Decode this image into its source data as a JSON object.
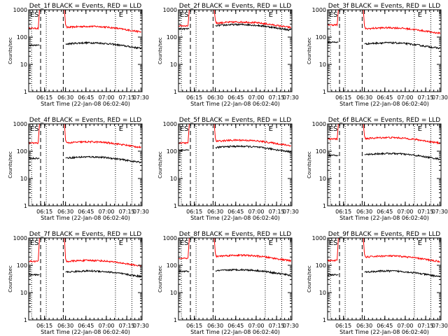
{
  "chart_data": [
    {
      "type": "line",
      "title": "Det_1f BLACK = Events, RED = LLD",
      "xlabel": "Start Time (22-Jan-08 06:02:40)",
      "ylabel": "Counts/sec",
      "x_ticks": [
        "06:15",
        "06:30",
        "06:45",
        "07:00",
        "07:15",
        "07:30"
      ],
      "y_ticks": [
        "1",
        "10",
        "100",
        "1000"
      ],
      "ylim": [
        1,
        1000
      ],
      "y_scale": "log",
      "markers": {
        "E1": "E",
        "S": "S",
        "E2": "E"
      },
      "series": [
        {
          "color": "#ff0000",
          "start_level": 210,
          "peak": 1000,
          "end_level": 180
        },
        {
          "color": "#000000",
          "start_level": 50,
          "end_level": 45
        }
      ]
    },
    {
      "type": "line",
      "title": "Det_2f BLACK = Events, RED = LLD",
      "xlabel": "Start Time (22-Jan-08 06:02:40)",
      "ylabel": "Counts/sec",
      "x_ticks": [
        "06:15",
        "06:30",
        "06:45",
        "07:00",
        "07:15",
        "07:30"
      ],
      "y_ticks": [
        "1",
        "10",
        "100",
        "1000"
      ],
      "ylim": [
        1,
        1000
      ],
      "y_scale": "log",
      "markers": {
        "E1": "E",
        "S": "S",
        "E2": "E"
      },
      "series": [
        {
          "color": "#ff0000",
          "start_level": 260,
          "peak": 1000,
          "end_level": 260
        },
        {
          "color": "#000000",
          "start_level": 200,
          "end_level": 210
        }
      ]
    },
    {
      "type": "line",
      "title": "Det_3f BLACK = Events, RED = LLD",
      "xlabel": "Start Time (22-Jan-08 06:02:40)",
      "ylabel": "Counts/sec",
      "x_ticks": [
        "06:15",
        "06:30",
        "06:45",
        "07:00",
        "07:15",
        "07:30"
      ],
      "y_ticks": [
        "1",
        "10",
        "100",
        "1000"
      ],
      "ylim": [
        1,
        1000
      ],
      "y_scale": "log",
      "markers": {
        "E1": "E",
        "S": "S",
        "E2": "E"
      },
      "series": [
        {
          "color": "#ff0000",
          "start_level": 280,
          "peak": 1000,
          "end_level": 160
        },
        {
          "color": "#000000",
          "start_level": 65,
          "end_level": 45
        }
      ]
    },
    {
      "type": "line",
      "title": "Det_4f BLACK = Events, RED = LLD",
      "xlabel": "Start Time (22-Jan-08 06:02:40)",
      "ylabel": "Counts/sec",
      "x_ticks": [
        "06:15",
        "06:30",
        "06:45",
        "07:00",
        "07:15",
        "07:30"
      ],
      "y_ticks": [
        "1",
        "10",
        "100",
        "1000"
      ],
      "ylim": [
        1,
        1000
      ],
      "y_scale": "log",
      "markers": {
        "E1": "E",
        "S": "S",
        "E2": "E"
      },
      "series": [
        {
          "color": "#ff0000",
          "start_level": 200,
          "peak": 1000,
          "end_level": 160
        },
        {
          "color": "#000000",
          "start_level": 55,
          "end_level": 45
        }
      ]
    },
    {
      "type": "line",
      "title": "Det_5f BLACK = Events, RED = LLD",
      "xlabel": "Start Time (22-Jan-08 06:02:40)",
      "ylabel": "Counts/sec",
      "x_ticks": [
        "06:15",
        "06:30",
        "06:45",
        "07:00",
        "07:15",
        "07:30"
      ],
      "y_ticks": [
        "1",
        "10",
        "100",
        "1000"
      ],
      "ylim": [
        1,
        1000
      ],
      "y_scale": "log",
      "markers": {
        "E1": "E",
        "S": "S",
        "E2": "E"
      },
      "series": [
        {
          "color": "#ff0000",
          "start_level": 200,
          "peak": 1000,
          "end_level": 185
        },
        {
          "color": "#000000",
          "start_level": 110,
          "end_level": 110
        }
      ]
    },
    {
      "type": "line",
      "title": "Det_6f BLACK = Events, RED = LLD",
      "xlabel": "Start Time (22-Jan-08 06:02:40)",
      "ylabel": "Counts/sec",
      "x_ticks": [
        "06:15",
        "06:30",
        "06:45",
        "07:00",
        "07:15",
        "07:30"
      ],
      "y_ticks": [
        "1",
        "10",
        "100",
        "1000"
      ],
      "ylim": [
        1,
        1000
      ],
      "y_scale": "log",
      "markers": {
        "E1": "E",
        "S": "S",
        "E2": "E"
      },
      "series": [
        {
          "color": "#ff0000",
          "start_level": 280,
          "peak": 1000,
          "end_level": 230
        },
        {
          "color": "#000000",
          "start_level": 70,
          "end_level": 60
        }
      ]
    },
    {
      "type": "line",
      "title": "Det_7f BLACK = Events, RED = LLD",
      "xlabel": "Start Time (22-Jan-08 06:02:40)",
      "ylabel": "Counts/sec",
      "x_ticks": [
        "06:15",
        "06:30",
        "06:45",
        "07:00",
        "07:15",
        "07:30"
      ],
      "y_ticks": [
        "1",
        "10",
        "100",
        "1000"
      ],
      "ylim": [
        1,
        1000
      ],
      "y_scale": "log",
      "markers": {
        "E1": "E",
        "S": "S",
        "E2": "E"
      },
      "series": [
        {
          "color": "#ff0000",
          "start_level": 140,
          "peak": 1000,
          "end_level": 110
        },
        {
          "color": "#000000",
          "start_level": 45,
          "end_level": 45
        }
      ]
    },
    {
      "type": "line",
      "title": "Det_8f BLACK = Events, RED = LLD",
      "xlabel": "Start Time (22-Jan-08 06:02:40)",
      "ylabel": "Counts/sec",
      "x_ticks": [
        "06:15",
        "06:30",
        "06:45",
        "07:00",
        "07:15",
        "07:30"
      ],
      "y_ticks": [
        "1",
        "10",
        "100",
        "1000"
      ],
      "ylim": [
        1,
        1000
      ],
      "y_scale": "log",
      "markers": {
        "E1": "E",
        "S": "S",
        "E2": "E"
      },
      "series": [
        {
          "color": "#ff0000",
          "start_level": 180,
          "peak": 1000,
          "end_level": 170
        },
        {
          "color": "#000000",
          "start_level": 60,
          "end_level": 50
        }
      ]
    },
    {
      "type": "line",
      "title": "Det_9f BLACK = Events, RED = LLD",
      "xlabel": "Start Time (22-Jan-08 06:02:40)",
      "ylabel": "Counts/sec",
      "x_ticks": [
        "06:15",
        "06:30",
        "06:45",
        "07:00",
        "07:15",
        "07:30"
      ],
      "y_ticks": [
        "1",
        "10",
        "100",
        "1000"
      ],
      "ylim": [
        1,
        1000
      ],
      "y_scale": "log",
      "markers": {
        "E1": "E",
        "S": "S",
        "E2": "E"
      },
      "series": [
        {
          "color": "#ff0000",
          "start_level": 150,
          "peak": 1000,
          "end_level": 160
        },
        {
          "color": "#000000",
          "start_level": 45,
          "end_level": 45
        }
      ]
    }
  ]
}
